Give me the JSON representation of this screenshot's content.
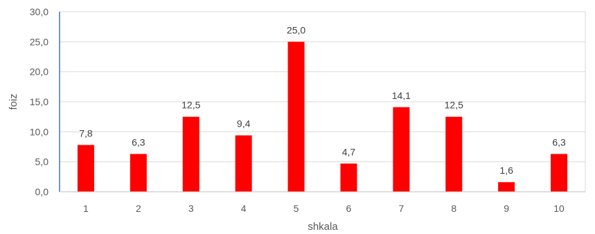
{
  "chart_data": {
    "type": "bar",
    "xlabel": "shkala",
    "ylabel": "foiz",
    "categories": [
      "1",
      "2",
      "3",
      "4",
      "5",
      "6",
      "7",
      "8",
      "9",
      "10"
    ],
    "values": [
      7.8,
      6.3,
      12.5,
      9.4,
      25.0,
      4.7,
      14.1,
      12.5,
      1.6,
      6.3
    ],
    "value_labels": [
      "7,8",
      "6,3",
      "12,5",
      "9,4",
      "25,0",
      "4,7",
      "14,1",
      "12,5",
      "1,6",
      "6,3"
    ],
    "y_ticks": [
      "0,0",
      "5,0",
      "10,0",
      "15,0",
      "20,0",
      "25,0",
      "30,0"
    ],
    "ylim": [
      0,
      30
    ],
    "grid": true,
    "legend": "none",
    "bar_color": "#FF0000"
  }
}
